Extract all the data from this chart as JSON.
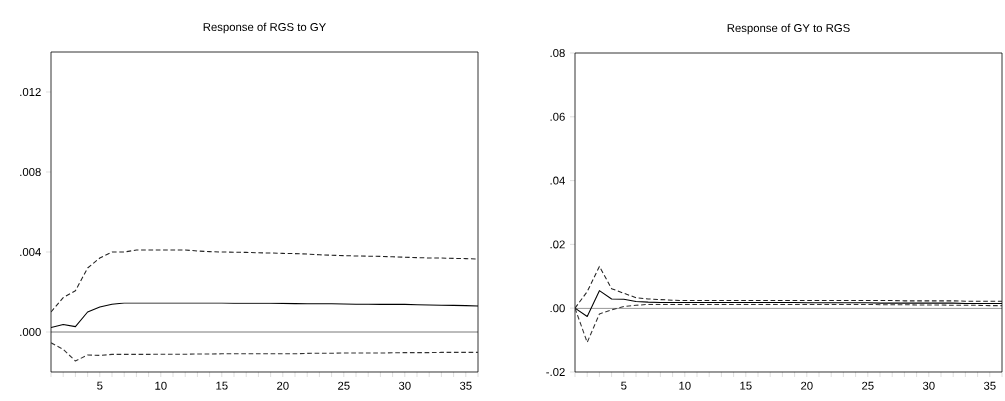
{
  "chart_data": [
    {
      "type": "line",
      "title": "Response of RGS to GY",
      "x": [
        1,
        2,
        3,
        4,
        5,
        6,
        7,
        8,
        9,
        10,
        11,
        12,
        13,
        14,
        15,
        16,
        17,
        18,
        19,
        20,
        21,
        22,
        23,
        24,
        25,
        26,
        27,
        28,
        29,
        30,
        31,
        32,
        33,
        34,
        35,
        36
      ],
      "series": [
        {
          "color": "#000000",
          "line_style": "solid",
          "values": [
            0.00022,
            0.00038,
            0.00027,
            0.001,
            0.00125,
            0.00139,
            0.00145,
            0.00145,
            0.00145,
            0.00145,
            0.00145,
            0.00145,
            0.00145,
            0.00145,
            0.00145,
            0.00144,
            0.00144,
            0.00144,
            0.00144,
            0.00143,
            0.00142,
            0.00141,
            0.00141,
            0.00141,
            0.0014,
            0.00139,
            0.00139,
            0.00138,
            0.00138,
            0.00138,
            0.00136,
            0.00135,
            0.00134,
            0.00133,
            0.00132,
            0.0013
          ]
        },
        {
          "color": "#222222",
          "line_style": "dashed",
          "values": [
            0.001,
            0.00172,
            0.00206,
            0.0032,
            0.0037,
            0.004,
            0.004,
            0.0041,
            0.0041,
            0.0041,
            0.0041,
            0.0041,
            0.00405,
            0.00402,
            0.004,
            0.00399,
            0.00398,
            0.00396,
            0.00395,
            0.00393,
            0.00392,
            0.0039,
            0.00386,
            0.00384,
            0.00382,
            0.0038,
            0.00379,
            0.00378,
            0.00376,
            0.00374,
            0.00372,
            0.0037,
            0.0037,
            0.00368,
            0.00367,
            0.00365
          ]
        },
        {
          "color": "#333333",
          "line_style": "dashed",
          "values": [
            -0.00054,
            -0.00087,
            -0.00145,
            -0.00115,
            -0.00117,
            -0.00112,
            -0.00112,
            -0.00112,
            -0.00112,
            -0.00111,
            -0.00111,
            -0.00111,
            -0.0011,
            -0.0011,
            -0.00109,
            -0.00109,
            -0.00109,
            -0.00109,
            -0.00109,
            -0.00109,
            -0.00109,
            -0.00107,
            -0.00106,
            -0.00106,
            -0.00105,
            -0.00105,
            -0.00105,
            -0.00105,
            -0.00104,
            -0.00103,
            -0.00103,
            -0.00103,
            -0.00102,
            -0.00102,
            -0.00102,
            -0.00102
          ]
        }
      ],
      "xlim": [
        1,
        36
      ],
      "ylim": [
        -0.002,
        0.014
      ],
      "xticks": [
        {
          "value": 1,
          "label": null
        },
        {
          "value": 2,
          "label": null
        },
        {
          "value": 3,
          "label": null
        },
        {
          "value": 4,
          "label": null
        },
        5,
        {
          "value": 6,
          "label": null
        },
        {
          "value": 7,
          "label": null
        },
        {
          "value": 8,
          "label": null
        },
        {
          "value": 9,
          "label": null
        },
        10,
        {
          "value": 11,
          "label": null
        },
        {
          "value": 12,
          "label": null
        },
        {
          "value": 13,
          "label": null
        },
        {
          "value": 14,
          "label": null
        },
        15,
        {
          "value": 16,
          "label": null
        },
        {
          "value": 17,
          "label": null
        },
        {
          "value": 18,
          "label": null
        },
        {
          "value": 19,
          "label": null
        },
        20,
        {
          "value": 21,
          "label": null
        },
        {
          "value": 22,
          "label": null
        },
        {
          "value": 23,
          "label": null
        },
        {
          "value": 24,
          "label": null
        },
        25,
        {
          "value": 26,
          "label": null
        },
        {
          "value": 27,
          "label": null
        },
        {
          "value": 28,
          "label": null
        },
        {
          "value": 29,
          "label": null
        },
        30,
        {
          "value": 31,
          "label": null
        },
        {
          "value": 32,
          "label": null
        },
        {
          "value": 33,
          "label": null
        },
        {
          "value": 34,
          "label": null
        },
        35,
        {
          "value": 36,
          "label": null
        }
      ],
      "yticks": [
        {
          "value": 0,
          "label": ".000"
        },
        {
          "value": 0.004,
          "label": ".004"
        },
        {
          "value": 0.008,
          "label": ".008"
        },
        {
          "value": 0.012,
          "label": ".012"
        }
      ],
      "ref_lines": [
        {
          "axis": "y",
          "value": 0,
          "color": "#000000"
        }
      ]
    },
    {
      "type": "line",
      "title": "Response of GY to RGS",
      "x": [
        1,
        2,
        3,
        4,
        5,
        6,
        7,
        8,
        9,
        10,
        11,
        12,
        13,
        14,
        15,
        16,
        17,
        18,
        19,
        20,
        21,
        22,
        23,
        24,
        25,
        26,
        27,
        28,
        29,
        30,
        31,
        32,
        33,
        34,
        35,
        36
      ],
      "series": [
        {
          "color": "#000000",
          "line_style": "solid",
          "values": [
            0,
            -0.0026,
            0.0055,
            0.0029,
            0.0028,
            0.0021,
            0.0019,
            0.0018,
            0.0018,
            0.0018,
            0.0018,
            0.0018,
            0.0018,
            0.0018,
            0.0018,
            0.0018,
            0.0018,
            0.0018,
            0.0018,
            0.0017,
            0.0017,
            0.0017,
            0.0017,
            0.0017,
            0.0017,
            0.0016,
            0.0016,
            0.0016,
            0.0016,
            0.0016,
            0.0016,
            0.0016,
            0.0015,
            0.0015,
            0.0015,
            0.0015
          ]
        },
        {
          "color": "#222222",
          "line_style": "dashed",
          "values": [
            0,
            0.0052,
            0.0131,
            0.0061,
            0.0047,
            0.0033,
            0.0029,
            0.0027,
            0.0025,
            0.0024,
            0.0024,
            0.0024,
            0.0024,
            0.0024,
            0.0024,
            0.0024,
            0.0024,
            0.0024,
            0.0024,
            0.0024,
            0.0024,
            0.0024,
            0.0024,
            0.0024,
            0.0024,
            0.0024,
            0.0024,
            0.0023,
            0.0023,
            0.0023,
            0.0023,
            0.0023,
            0.0022,
            0.0022,
            0.0022,
            0.0022
          ]
        },
        {
          "color": "#333333",
          "line_style": "dashed",
          "values": [
            0,
            -0.0107,
            -0.0018,
            -0.0005,
            0.0005,
            0.0009,
            0.0012,
            0.0012,
            0.0012,
            0.0012,
            0.0012,
            0.0012,
            0.0012,
            0.0012,
            0.0012,
            0.0012,
            0.0012,
            0.0012,
            0.0012,
            0.0012,
            0.0012,
            0.0012,
            0.0012,
            0.0012,
            0.0012,
            0.0011,
            0.0011,
            0.0011,
            0.001,
            0.001,
            0.001,
            0.0009,
            0.0009,
            0.0009,
            0.0008,
            0.0008
          ]
        }
      ],
      "xlim": [
        1,
        36
      ],
      "ylim": [
        -0.02,
        0.08
      ],
      "xticks": [
        {
          "value": 1,
          "label": null
        },
        {
          "value": 2,
          "label": null
        },
        {
          "value": 3,
          "label": null
        },
        {
          "value": 4,
          "label": null
        },
        5,
        {
          "value": 6,
          "label": null
        },
        {
          "value": 7,
          "label": null
        },
        {
          "value": 8,
          "label": null
        },
        {
          "value": 9,
          "label": null
        },
        10,
        {
          "value": 11,
          "label": null
        },
        {
          "value": 12,
          "label": null
        },
        {
          "value": 13,
          "label": null
        },
        {
          "value": 14,
          "label": null
        },
        15,
        {
          "value": 16,
          "label": null
        },
        {
          "value": 17,
          "label": null
        },
        {
          "value": 18,
          "label": null
        },
        {
          "value": 19,
          "label": null
        },
        20,
        {
          "value": 21,
          "label": null
        },
        {
          "value": 22,
          "label": null
        },
        {
          "value": 23,
          "label": null
        },
        {
          "value": 24,
          "label": null
        },
        25,
        {
          "value": 26,
          "label": null
        },
        {
          "value": 27,
          "label": null
        },
        {
          "value": 28,
          "label": null
        },
        {
          "value": 29,
          "label": null
        },
        30,
        {
          "value": 31,
          "label": null
        },
        {
          "value": 32,
          "label": null
        },
        {
          "value": 33,
          "label": null
        },
        {
          "value": 34,
          "label": null
        },
        35,
        {
          "value": 36,
          "label": null
        }
      ],
      "yticks": [
        {
          "value": -0.02,
          "label": "-.02"
        },
        {
          "value": 0,
          "label": ".00"
        },
        {
          "value": 0.02,
          "label": ".02"
        },
        {
          "value": 0.04,
          "label": ".04"
        },
        {
          "value": 0.06,
          "label": ".06"
        },
        {
          "value": 0.08,
          "label": ".08"
        }
      ],
      "ref_lines": [
        {
          "axis": "y",
          "value": 0,
          "color": "#000000"
        }
      ]
    }
  ]
}
